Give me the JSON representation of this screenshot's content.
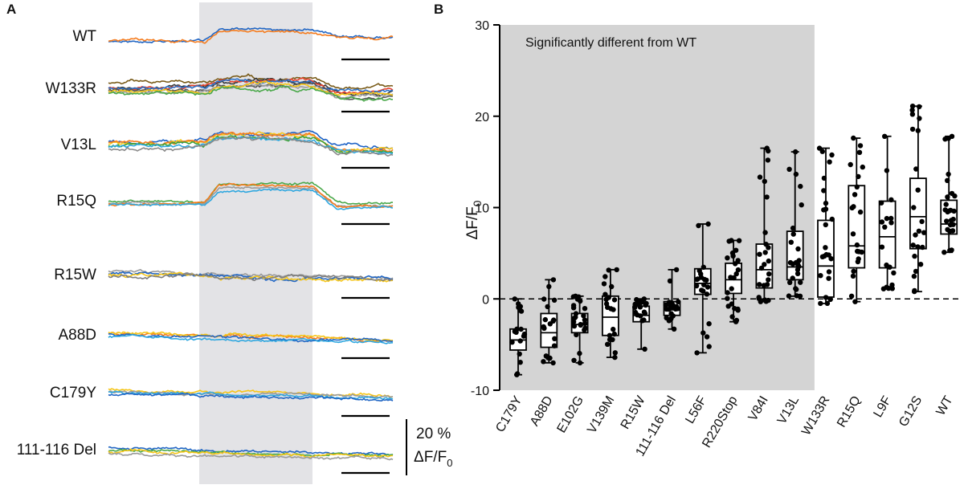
{
  "panel_a_letter": "A",
  "panel_b_letter": "B",
  "scale_bar": {
    "value": "20 %",
    "unit_main": "ΔF/F",
    "unit_sub": "0"
  },
  "chart_data": [
    {
      "type": "line",
      "panel": "A",
      "description_shaded_stimulus": true,
      "traces": [
        {
          "label": "WT",
          "colors": [
            "#2166c4",
            "#f57c1e"
          ],
          "start": 0.1,
          "rise": 0.55,
          "end": 0.3,
          "noise": 0.02
        },
        {
          "label": "W133R",
          "colors": [
            "#7a5c1a",
            "#3b3b3b",
            "#e8432c",
            "#2c72c8",
            "#555555",
            "#9a9a9a",
            "#f5c518",
            "#4aa84a"
          ],
          "start": 0.3,
          "rise": 0.25,
          "end": 0.1,
          "noise": 0.03
        },
        {
          "label": "V13L",
          "colors": [
            "#1f63c6",
            "#f5c518",
            "#f57c1e",
            "#3da33d",
            "#2fa7df",
            "#8a8a8a"
          ],
          "start": 0.35,
          "rise": 0.35,
          "end": 0.1,
          "noise": 0.03
        },
        {
          "label": "R15Q",
          "colors": [
            "#4aa84a",
            "#9a9a9a",
            "#f57c1e",
            "#2fa7df"
          ],
          "start": 0.2,
          "rise": 0.75,
          "end": 0.1,
          "noise": 0.015
        },
        {
          "label": "R15W",
          "colors": [
            "#9a9a9a",
            "#2166c4",
            "#f5c518",
            "#7d7d7d"
          ],
          "start": 0.35,
          "rise": 0.0,
          "end": 0.1,
          "noise": 0.03
        },
        {
          "label": "A88D",
          "colors": [
            "#f57c1e",
            "#f5c518",
            "#2166c4",
            "#2fa7df"
          ],
          "start": 0.35,
          "rise": 0.0,
          "end": 0.05,
          "noise": 0.02
        },
        {
          "label": "C179Y",
          "colors": [
            "#f5c518",
            "#9a9a9a",
            "#2fa7df",
            "#2166c4"
          ],
          "start": 0.35,
          "rise": 0.0,
          "end": 0.1,
          "noise": 0.02
        },
        {
          "label": "111-116 Del",
          "colors": [
            "#2166c4",
            "#4aa84a",
            "#f5c518",
            "#9a9a9a"
          ],
          "start": 0.3,
          "rise": 0.0,
          "end": 0.05,
          "noise": 0.02
        }
      ]
    },
    {
      "type": "box",
      "panel": "B",
      "ylabel_main": "ΔF/F",
      "ylabel_sub": "0",
      "ylim": [
        -10,
        30
      ],
      "yticks": [
        -10,
        0,
        10,
        20,
        30
      ],
      "reference_line": 0,
      "shaded_region_label": "Significantly different from WT",
      "shaded_categories_count": 10,
      "categories": [
        "C179Y",
        "A88D",
        "E102G",
        "V139M",
        "R15W",
        "111-116 Del",
        "L56F",
        "R220Stop",
        "V84I",
        "V13L",
        "W133R",
        "R15Q",
        "L9F",
        "G12S",
        "WT"
      ],
      "boxes": [
        {
          "min": -8.3,
          "q1": -5.6,
          "median": -4.5,
          "q3": -3.3,
          "max": 0.0
        },
        {
          "min": -7.0,
          "q1": -5.3,
          "median": -3.7,
          "q3": -1.6,
          "max": 2.1
        },
        {
          "min": -7.0,
          "q1": -3.7,
          "median": -2.8,
          "q3": -1.6,
          "max": 0.3
        },
        {
          "min": -6.4,
          "q1": -4.0,
          "median": -2.0,
          "q3": 0.3,
          "max": 3.2
        },
        {
          "min": -5.5,
          "q1": -2.5,
          "median": -1.8,
          "q3": -0.8,
          "max": 0.0
        },
        {
          "min": -3.3,
          "q1": -1.8,
          "median": -1.2,
          "q3": -0.3,
          "max": 3.2
        },
        {
          "min": -5.9,
          "q1": 0.5,
          "median": 1.7,
          "q3": 3.3,
          "max": 8.2
        },
        {
          "min": -2.5,
          "q1": 0.6,
          "median": 2.1,
          "q3": 3.9,
          "max": 6.4
        },
        {
          "min": -0.3,
          "q1": 1.2,
          "median": 3.2,
          "q3": 6.0,
          "max": 16.5
        },
        {
          "min": 0.3,
          "q1": 2.1,
          "median": 3.5,
          "q3": 7.4,
          "max": 16.1
        },
        {
          "min": -0.5,
          "q1": 0.2,
          "median": 3.6,
          "q3": 8.6,
          "max": 16.5
        },
        {
          "min": -0.3,
          "q1": 3.4,
          "median": 5.8,
          "q3": 12.4,
          "max": 17.6
        },
        {
          "min": 1.1,
          "q1": 3.4,
          "median": 6.8,
          "q3": 10.7,
          "max": 17.8
        },
        {
          "min": 0.8,
          "q1": 5.5,
          "median": 9.0,
          "q3": 13.2,
          "max": 21.1
        },
        {
          "min": 5.1,
          "q1": 7.1,
          "median": 8.2,
          "q3": 10.8,
          "max": 17.8
        }
      ]
    }
  ]
}
